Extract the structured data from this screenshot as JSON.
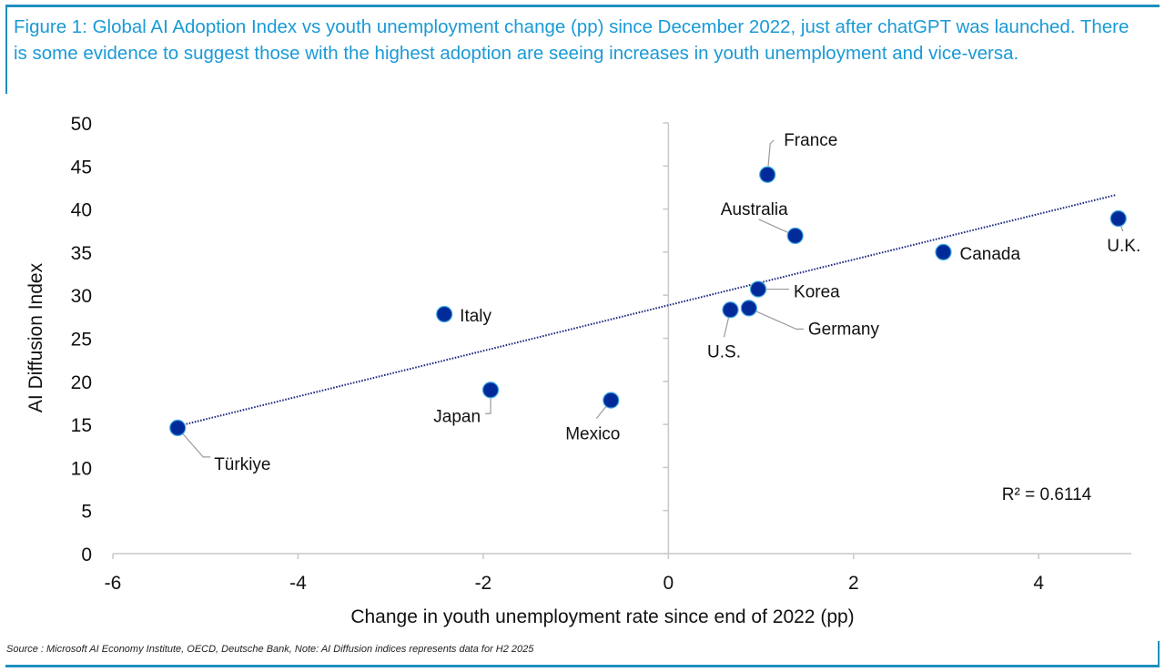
{
  "caption": "Figure 1: Global AI Adoption Index vs youth unemployment change (pp) since December 2022, just after chatGPT was launched. There is some evidence to suggest those with the highest adoption are seeing increases in youth unemployment and vice-versa.",
  "source": "Source : Microsoft AI Economy Institute, OECD, Deutsche Bank, Note: AI Diffusion indices represents data for H2 2025",
  "colors": {
    "caption": "#1a9ad6",
    "rule": "#1f8fbf",
    "marker": "#002a9a",
    "marker_edge": "#3fa9e0",
    "trendline": "#1d2a80",
    "axis": "#c8c8c8",
    "leader": "#9a9a9a"
  },
  "chart_data": {
    "type": "scatter",
    "title": "",
    "xlabel": "Change in youth unemployment rate since end of 2022 (pp)",
    "ylabel": "AI Diffusion Index",
    "xlim": [
      -6,
      5
    ],
    "ylim": [
      0,
      50
    ],
    "xticks": [
      -6,
      -4,
      -2,
      0,
      2,
      4
    ],
    "yticks": [
      0,
      5,
      10,
      15,
      20,
      25,
      30,
      35,
      40,
      45,
      50
    ],
    "grid": false,
    "legend": "none",
    "points": [
      {
        "label": "Türkiye",
        "x": -5.3,
        "y": 14.6
      },
      {
        "label": "Italy",
        "x": -2.42,
        "y": 27.8
      },
      {
        "label": "Japan",
        "x": -1.92,
        "y": 19.0
      },
      {
        "label": "Mexico",
        "x": -0.62,
        "y": 17.8
      },
      {
        "label": "U.S.",
        "x": 0.67,
        "y": 28.3
      },
      {
        "label": "Germany",
        "x": 0.87,
        "y": 28.5
      },
      {
        "label": "Korea",
        "x": 0.97,
        "y": 30.7
      },
      {
        "label": "France",
        "x": 1.07,
        "y": 44.0
      },
      {
        "label": "Australia",
        "x": 1.37,
        "y": 36.9
      },
      {
        "label": "Canada",
        "x": 2.97,
        "y": 35.0
      },
      {
        "label": "U.K.",
        "x": 4.86,
        "y": 38.9
      }
    ],
    "trendline": {
      "type": "linear",
      "style": "dotted",
      "x_range": [
        -5.3,
        4.86
      ],
      "y_at_start": 14.8,
      "y_at_end": 41.6,
      "r_squared_label": "R² = 0.6114",
      "r_squared": 0.6114
    }
  }
}
